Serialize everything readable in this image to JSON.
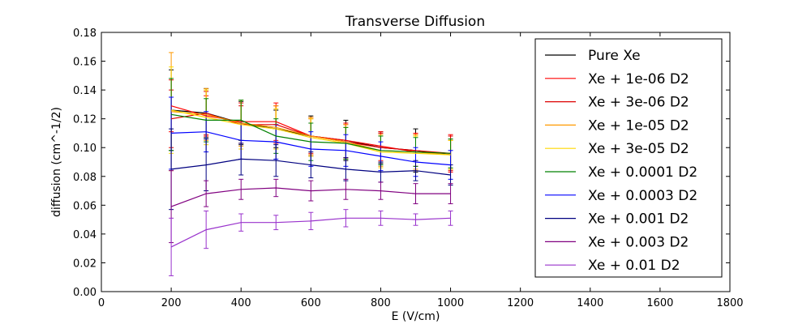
{
  "chart_data": {
    "type": "line",
    "title": "Transverse Diffusion",
    "xlabel": "E (V/cm)",
    "ylabel": "diffusion (cm^-1/2)",
    "xlim": [
      0,
      1800
    ],
    "ylim": [
      0,
      0.18
    ],
    "xticks": [
      "0",
      "200",
      "400",
      "600",
      "800",
      "1000",
      "1200",
      "1400",
      "1600",
      "1800"
    ],
    "yticks": [
      "0.00",
      "0.02",
      "0.04",
      "0.06",
      "0.08",
      "0.10",
      "0.12",
      "0.14",
      "0.16",
      "0.18"
    ],
    "legend_position": "top-right",
    "x": [
      200,
      300,
      400,
      500,
      600,
      700,
      800,
      900,
      1000
    ],
    "series": [
      {
        "name": "Pure Xe",
        "color": "#000000",
        "values": [
          0.126,
          0.124,
          0.117,
          0.113,
          0.108,
          0.105,
          0.1,
          0.098,
          0.095
        ],
        "errors": [
          0.028,
          0.017,
          0.015,
          0.013,
          0.014,
          0.014,
          0.011,
          0.015,
          0.01
        ]
      },
      {
        "name": "Xe + 1e-06 D2",
        "color": "#ff0000",
        "values": [
          0.129,
          0.122,
          0.118,
          0.118,
          0.108,
          0.105,
          0.101,
          0.097,
          0.096
        ],
        "errors": [
          0.018,
          0.014,
          0.013,
          0.013,
          0.013,
          0.012,
          0.01,
          0.013,
          0.013
        ]
      },
      {
        "name": "Xe + 3e-06 D2",
        "color": "#dd0000",
        "values": [
          0.12,
          0.124,
          0.116,
          0.116,
          0.108,
          0.104,
          0.1,
          0.098,
          0.096
        ],
        "errors": [
          0.02,
          0.015,
          0.013,
          0.013,
          0.012,
          0.012,
          0.01,
          0.011,
          0.012
        ]
      },
      {
        "name": "Xe + 1e-05 D2",
        "color": "#ff9900",
        "values": [
          0.125,
          0.123,
          0.117,
          0.114,
          0.108,
          0.104,
          0.098,
          0.097,
          0.095
        ],
        "errors": [
          0.041,
          0.018,
          0.016,
          0.015,
          0.013,
          0.012,
          0.011,
          0.012,
          0.01
        ]
      },
      {
        "name": "Xe + 3e-05 D2",
        "color": "#ffd700",
        "values": [
          0.126,
          0.121,
          0.116,
          0.113,
          0.107,
          0.103,
          0.097,
          0.096,
          0.095
        ],
        "errors": [
          0.03,
          0.019,
          0.017,
          0.014,
          0.013,
          0.011,
          0.011,
          0.012,
          0.01
        ]
      },
      {
        "name": "Xe + 0.0001 D2",
        "color": "#008000",
        "values": [
          0.123,
          0.119,
          0.119,
          0.108,
          0.104,
          0.103,
          0.098,
          0.097,
          0.096
        ],
        "errors": [
          0.025,
          0.015,
          0.014,
          0.012,
          0.013,
          0.011,
          0.01,
          0.01,
          0.01
        ]
      },
      {
        "name": "Xe + 0.0003 D2",
        "color": "#0000ff",
        "values": [
          0.11,
          0.111,
          0.105,
          0.104,
          0.099,
          0.098,
          0.094,
          0.09,
          0.088
        ],
        "errors": [
          0.025,
          0.014,
          0.013,
          0.012,
          0.012,
          0.011,
          0.01,
          0.01,
          0.01
        ]
      },
      {
        "name": "Xe + 0.001 D2",
        "color": "#000080",
        "values": [
          0.085,
          0.088,
          0.092,
          0.091,
          0.088,
          0.085,
          0.083,
          0.084,
          0.081
        ],
        "errors": [
          0.028,
          0.018,
          0.011,
          0.011,
          0.009,
          0.008,
          0.007,
          0.007,
          0.007
        ]
      },
      {
        "name": "Xe + 0.003 D2",
        "color": "#800080",
        "values": [
          0.059,
          0.068,
          0.071,
          0.072,
          0.07,
          0.071,
          0.07,
          0.068,
          0.068
        ],
        "errors": [
          0.025,
          0.009,
          0.007,
          0.006,
          0.007,
          0.007,
          0.006,
          0.007,
          0.007
        ]
      },
      {
        "name": "Xe + 0.01 D2",
        "color": "#9932cc",
        "values": [
          0.031,
          0.043,
          0.048,
          0.048,
          0.049,
          0.051,
          0.051,
          0.05,
          0.051
        ],
        "errors": [
          0.02,
          0.013,
          0.006,
          0.005,
          0.006,
          0.006,
          0.005,
          0.004,
          0.005
        ]
      }
    ]
  }
}
